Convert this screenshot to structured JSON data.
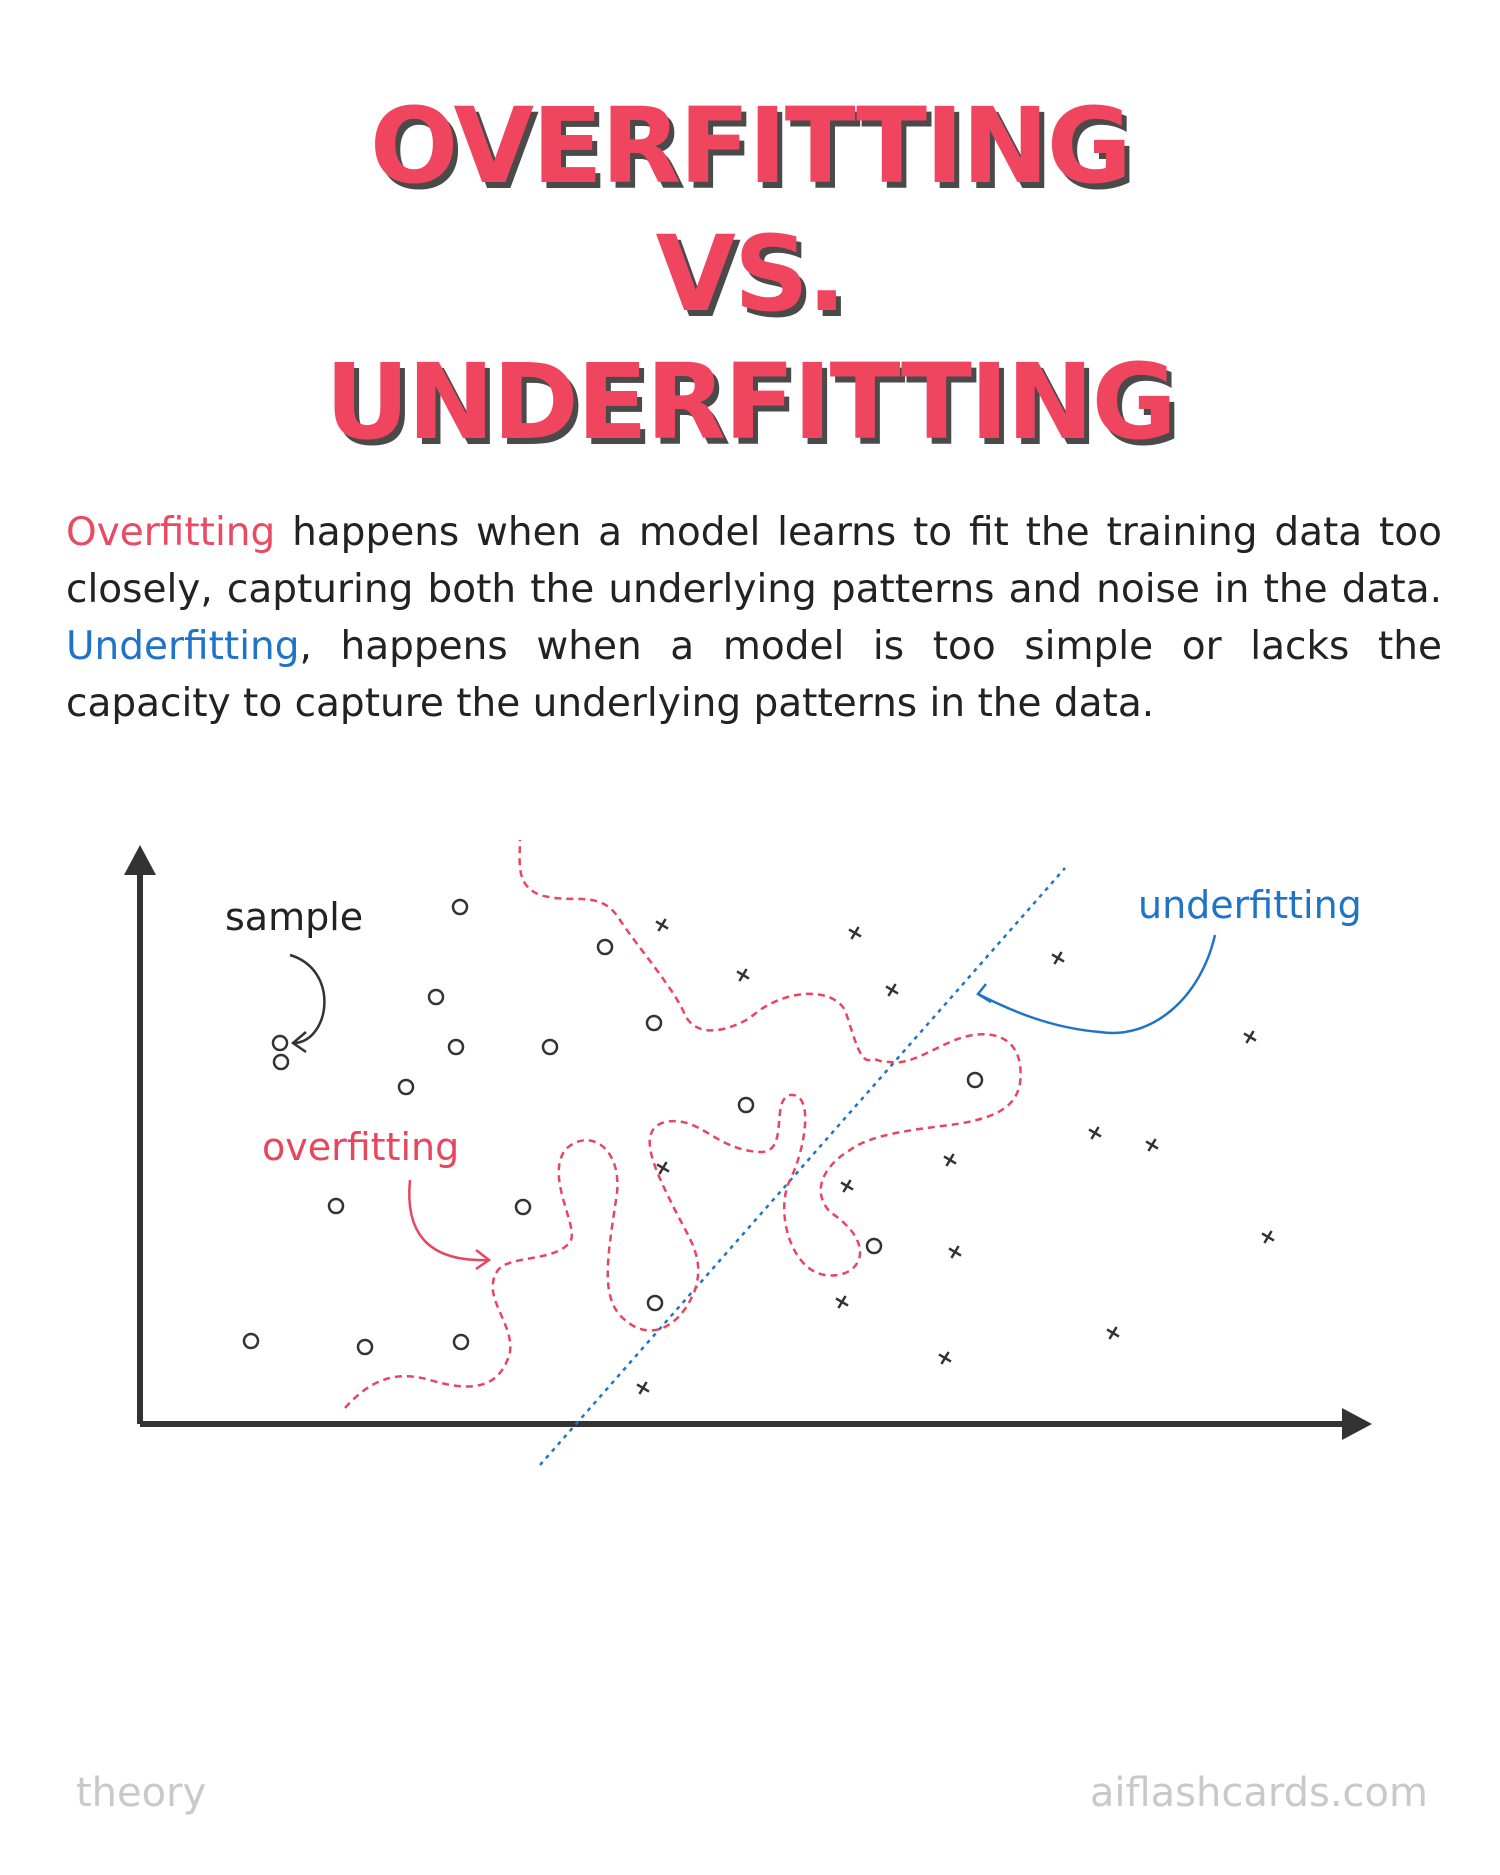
{
  "title": {
    "line1": "OVERFITTING",
    "line2": "VS.",
    "line3": "UNDERFITTING"
  },
  "description": {
    "term1": "Overfitting",
    "text1": " happens when a model learns to fit the training data too closely, capturing both the underlying patterns and noise in the data. ",
    "term2": "Underfitting",
    "text2": ", happens when a model is too simple or lacks the capacity to capture the underlying patterns in the data."
  },
  "diagram": {
    "labels": {
      "sample": "sample",
      "overfitting": "overfitting",
      "underfitting": "underfitting"
    },
    "colors": {
      "overfitting": "#e8465f",
      "underfitting": "#1f74c8",
      "ink": "#333333"
    }
  },
  "footer": {
    "left": "theory",
    "right": "aiflashcards.com"
  }
}
